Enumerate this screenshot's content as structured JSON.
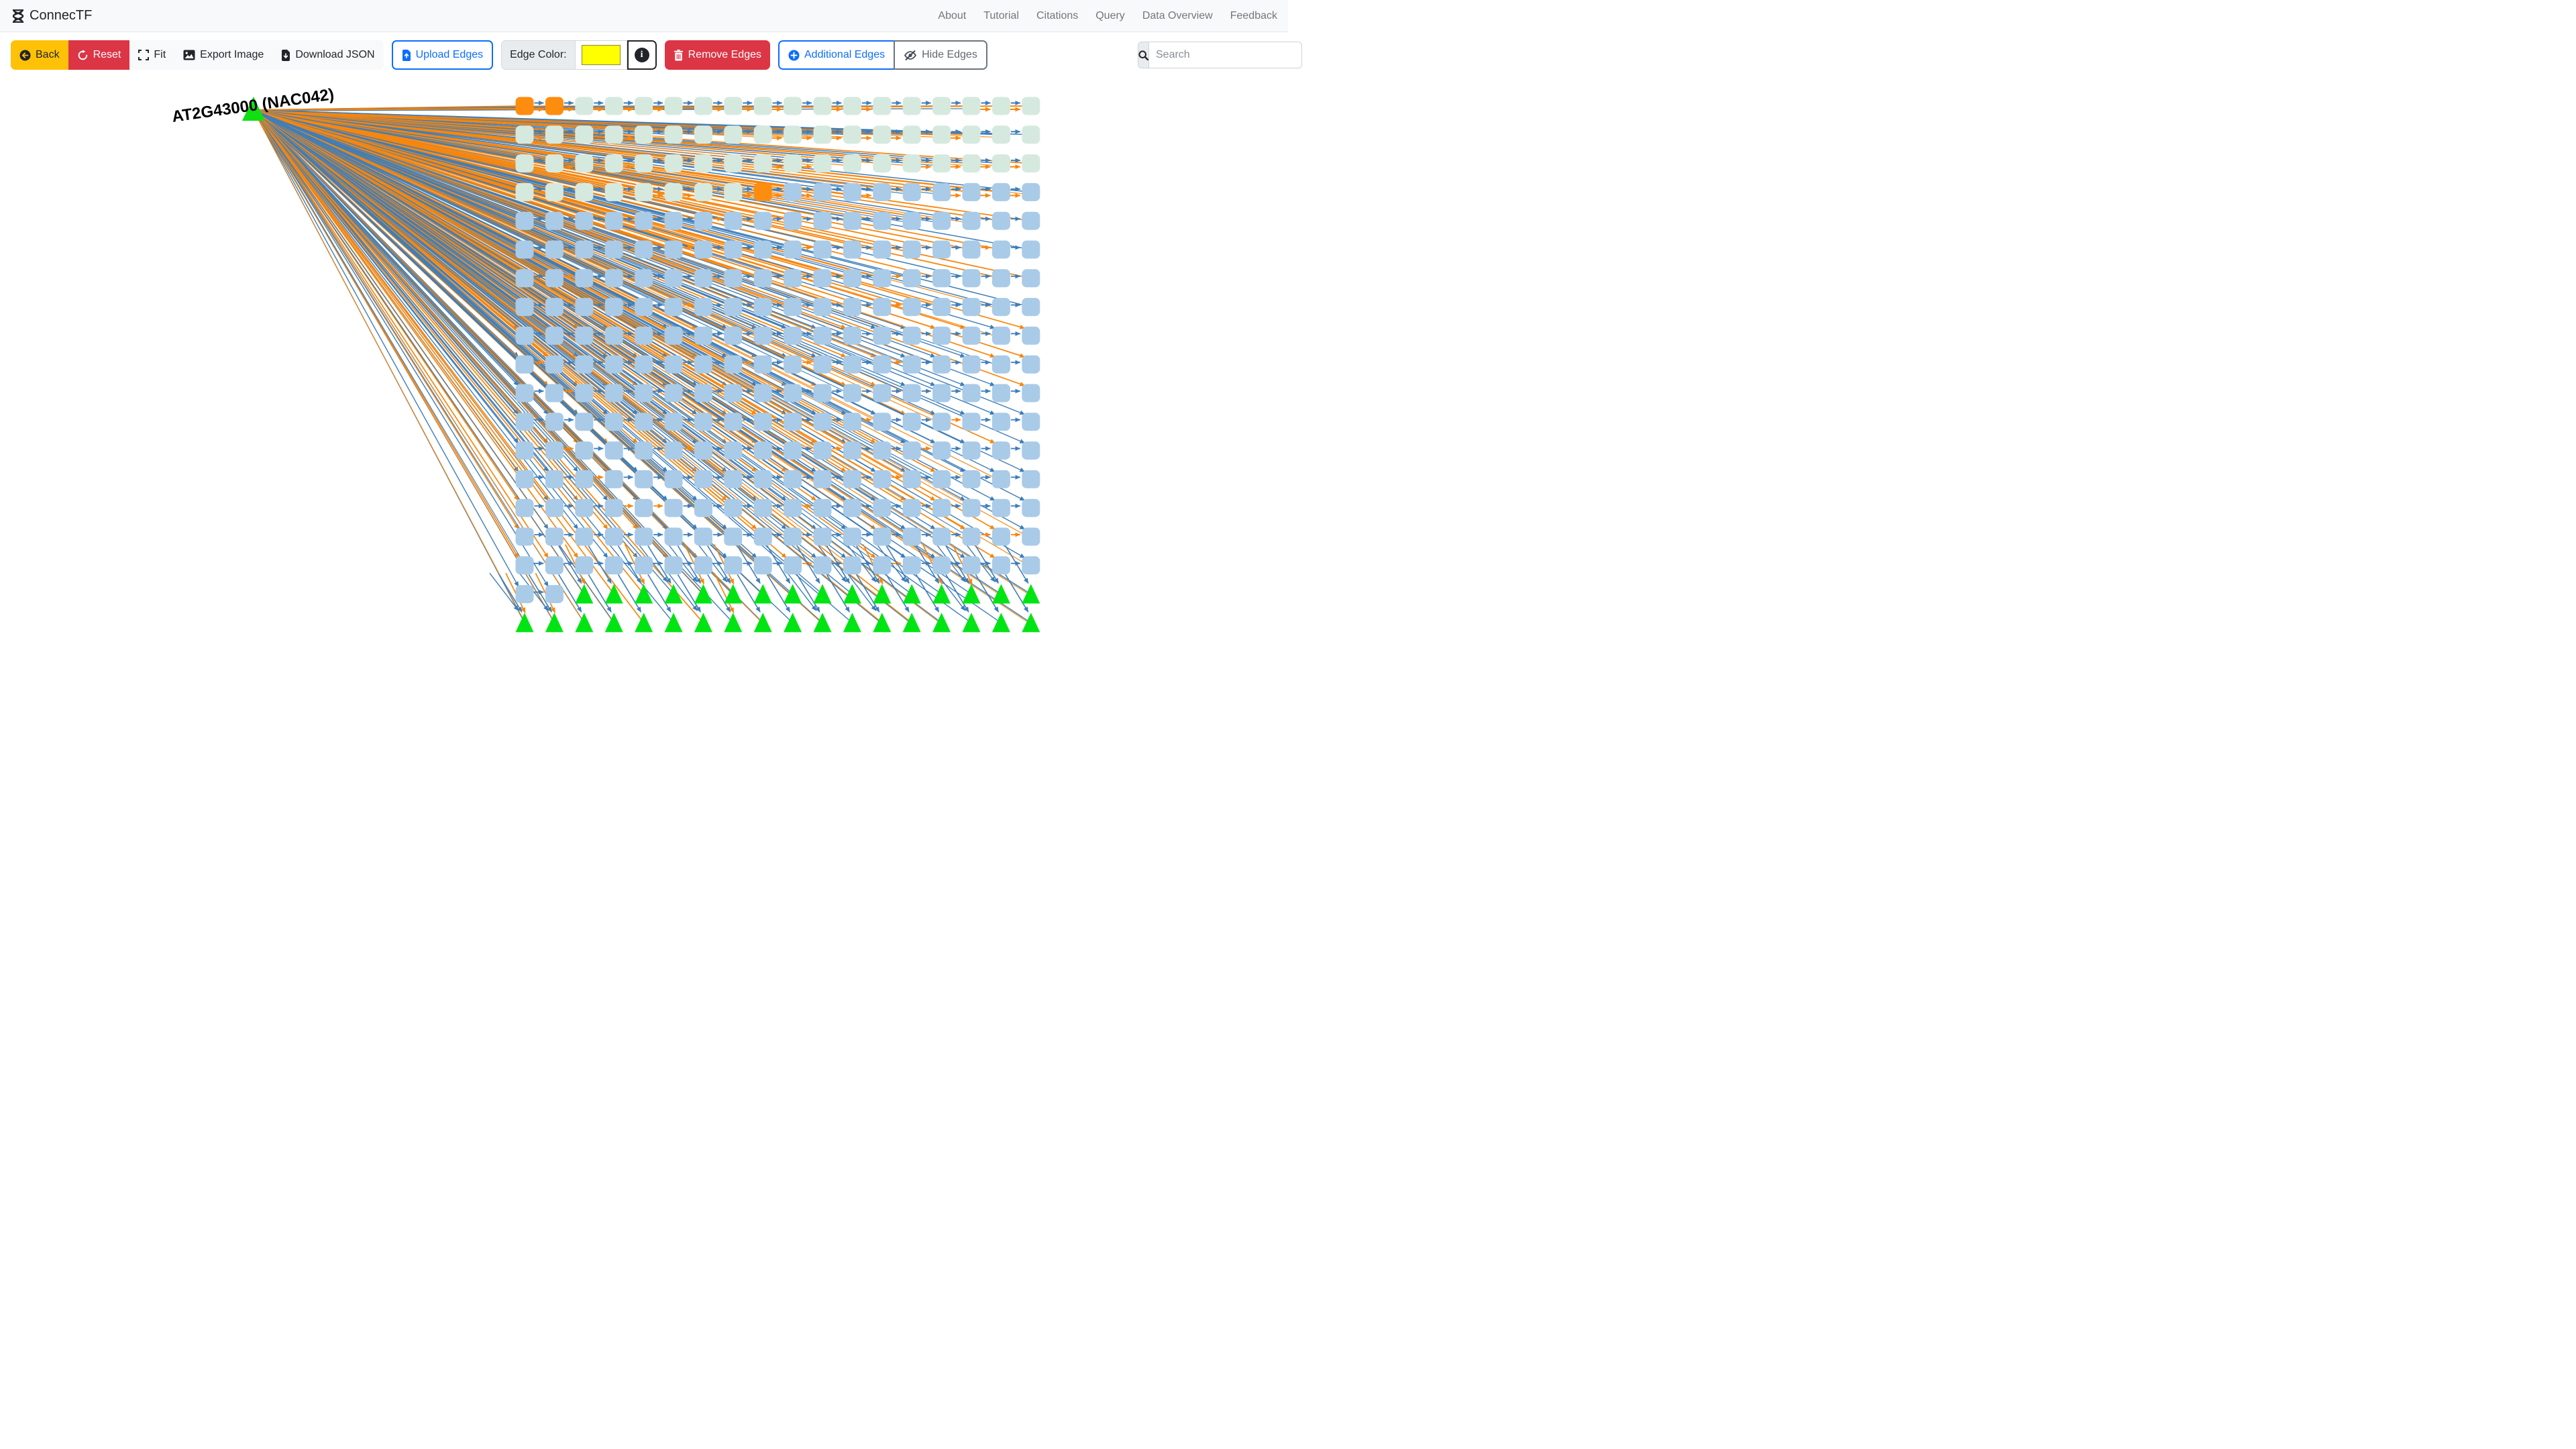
{
  "navbar": {
    "brand": "ConnecTF",
    "links": [
      {
        "label": "About"
      },
      {
        "label": "Tutorial"
      },
      {
        "label": "Citations"
      },
      {
        "label": "Query"
      },
      {
        "label": "Data Overview"
      },
      {
        "label": "Feedback"
      }
    ]
  },
  "toolbar": {
    "back": "Back",
    "reset": "Reset",
    "fit": "Fit",
    "export_image": "Export Image",
    "download_json": "Download JSON",
    "upload_edges": "Upload Edges",
    "edge_color_label": "Edge Color:",
    "edge_color_value": "#ffff00",
    "remove_edges": "Remove Edges",
    "additional_edges": "Additional Edges",
    "hide_edges": "Hide Edges",
    "search_placeholder": "Search"
  },
  "graph": {
    "source_label": "AT2G43000 (NAC042)",
    "colors": {
      "edge_blue": "#3e7eba",
      "edge_orange": "#f7860d",
      "node_mint": "#d6e9df",
      "node_blue": "#a9cbe8",
      "node_orange": "#fd8d0f",
      "triangle_green": "#00e414",
      "source_green": "#12df12",
      "label_color": "#000000"
    },
    "grid": {
      "cols": 18,
      "rows": [
        "oommmmmmmmmmmmmmmm",
        "mmmmmmmmmmmmmmmmmm",
        "mmmmmmmmmmmmmmmmmm",
        "mmmmmmmmobbbbbbbbb",
        "bbbbbbbbbbbbbbbbbb",
        "bbbbbbbbbbbbbbbbbb",
        "bbbbbbbbbbbbbbbbbb",
        "bbbbbbbbbbbbbbbbbb",
        "bbbbbbbbbbbbbbbbbb",
        "bbbbbbbbbbbbbbbbbb",
        "bbbbbbbbbbbbbbbbbb",
        "bbbbbbbbbbbbbbbbbb",
        "bbbbbbbbbbbbbbbbbb",
        "bbbbbbbbbbbbbbbbbb",
        "bbbbbbbbbbbbbbbbbb",
        "bbbbbbbbbbbbbbbbbb",
        "bbbbbbbbbbbbbbbbbb",
        "bbtttttttttttttttt",
        "tttttttttttttttttt"
      ]
    }
  }
}
